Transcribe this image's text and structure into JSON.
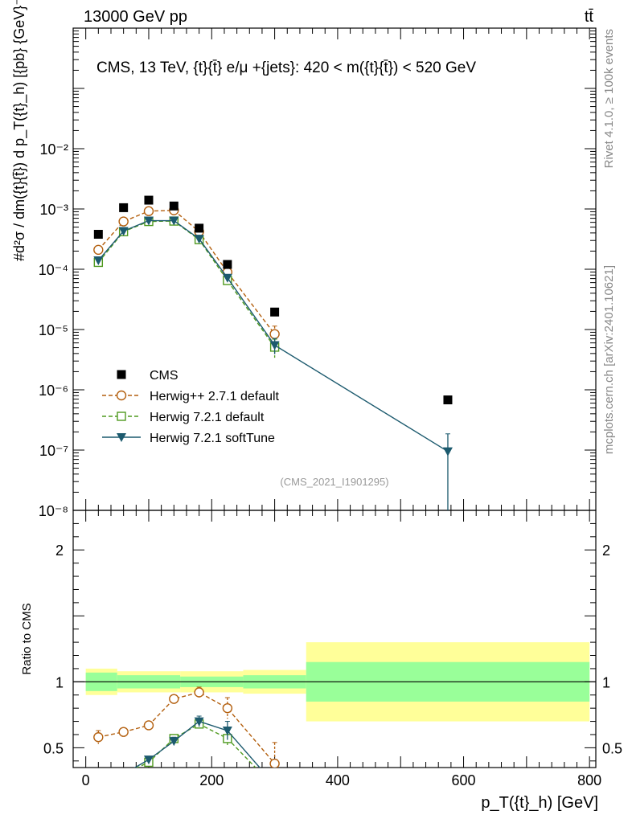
{
  "header": {
    "left": "13000 GeV pp",
    "right": "tt̄"
  },
  "side": {
    "rivet": "Rivet 4.1.0, ≥ 100k events",
    "mcplots": "mcplots.cern.ch [arXiv:2401.10621]"
  },
  "chart_data": {
    "type": "scatter",
    "title": "CMS, 13 TeV, {t}{t̄} e/μ +{jets}: 420 < m({t}{t̄}) < 520 GeV",
    "watermark": "(CMS_2021_I1901295)",
    "xlabel": "p_T({t}_h) [GeV]",
    "ylabel": "#d²σ / dm({t}{t̄}) d p_T({t}_h) [{pb} {GeV}⁻²]",
    "ratio_ylabel": "Ratio to CMS",
    "xlim": [
      -20,
      810
    ],
    "ylim_log": [
      1e-08,
      1
    ],
    "ratio_ylim": [
      0.35,
      2.3
    ],
    "x_ticks": [
      0,
      200,
      400,
      600,
      800
    ],
    "x_tick_labels": [
      "0",
      "200",
      "400",
      "600",
      "800"
    ],
    "y_tick_labels": [
      "10⁻⁸",
      "10⁻⁷",
      "10⁻⁶",
      "10⁻⁵",
      "10⁻⁴",
      "10⁻³",
      "10⁻²"
    ],
    "ratio_tick_labels": [
      "0.5",
      "1",
      "2"
    ],
    "ratio_ticks": [
      0.5,
      1,
      2
    ],
    "bin_edges": [
      0,
      50,
      150,
      250,
      350,
      800
    ],
    "x": [
      20,
      60,
      100,
      140,
      180,
      225,
      300,
      575
    ],
    "series": [
      {
        "name": "CMS",
        "style": "data",
        "color": "#000000",
        "values": [
          0.00038,
          0.00105,
          0.0014,
          0.00112,
          0.00048,
          0.00012,
          1.95e-05,
          6.8e-07
        ]
      },
      {
        "name": "Herwig++ 2.7.1 default",
        "style": "circle-dashed",
        "color": "#b35f0e",
        "values": [
          0.00021,
          0.00062,
          0.00092,
          0.00095,
          0.00042,
          8.9e-05,
          8.4e-06,
          null
        ],
        "errors": [
          2e-05,
          4e-05,
          5e-05,
          5e-05,
          3e-05,
          1e-05,
          3e-06,
          null
        ],
        "ratio": [
          0.58,
          0.62,
          0.67,
          0.87,
          0.92,
          0.8,
          0.38,
          null
        ],
        "ratio_errors": [
          0.05,
          0.03,
          0.03,
          0.03,
          0.04,
          0.08,
          0.16,
          null
        ]
      },
      {
        "name": "Herwig 7.2.1 default",
        "style": "square-dashed",
        "color": "#4f9a1f",
        "values": [
          0.00013,
          0.00042,
          0.00062,
          0.00063,
          0.00031,
          6.5e-05,
          5.1e-06,
          null
        ],
        "errors": [
          1e-05,
          3e-05,
          4e-05,
          4e-05,
          2e-05,
          8e-06,
          1.8e-06,
          null
        ],
        "ratio": [
          0.3,
          0.3,
          0.39,
          0.57,
          0.68,
          0.57,
          0.2,
          null
        ],
        "ratio_errors": [
          0.03,
          0.03,
          0.02,
          0.02,
          0.03,
          0.06,
          0.1,
          null
        ]
      },
      {
        "name": "Herwig 7.2.1 softTune",
        "style": "triangle-solid",
        "color": "#1c5a6e",
        "values": [
          0.00014,
          0.00043,
          0.00064,
          0.00064,
          0.00032,
          7.2e-05,
          5.5e-06,
          9.5e-08
        ],
        "errors": [
          1e-05,
          3e-05,
          4e-05,
          4e-05,
          2e-05,
          8e-06,
          1.6e-06,
          9.1e-08
        ],
        "ratio": [
          0.3,
          0.3,
          0.41,
          0.55,
          0.7,
          0.63,
          0.22,
          0.14
        ],
        "ratio_errors": [
          0.03,
          0.03,
          0.02,
          0.03,
          0.04,
          0.07,
          0.1,
          0.2
        ]
      }
    ],
    "band_inner": [
      0.07,
      0.05,
      0.04,
      0.05,
      0.15
    ],
    "band_outer": [
      0.1,
      0.08,
      0.08,
      0.09,
      0.3
    ]
  }
}
